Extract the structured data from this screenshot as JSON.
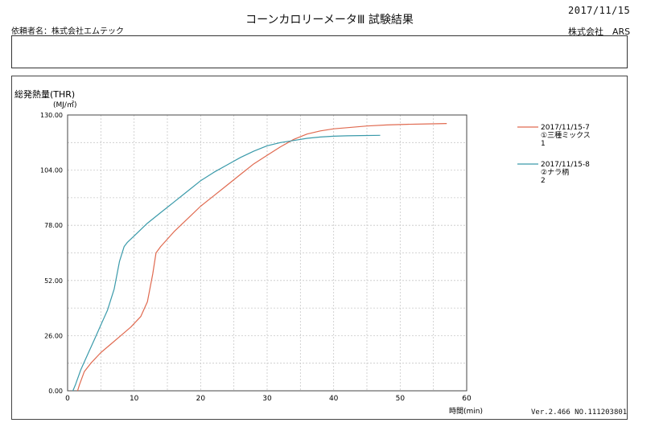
{
  "header": {
    "date": "2017/11/15",
    "title": "コーンカロリーメータⅢ 試験結果",
    "client_line": "依頼者名：株式会社エムテック",
    "company": "株式会社　ARS"
  },
  "footer": {
    "version": "Ver.2.466 NO.111203801"
  },
  "chart_data": {
    "type": "line",
    "title": "総発熱量(THR)",
    "ylabel": "(MJ/㎡)",
    "xlabel": "時間(min)",
    "xlim": [
      0,
      60
    ],
    "ylim": [
      0,
      130
    ],
    "x_ticks": [
      "0",
      "10",
      "20",
      "30",
      "40",
      "50",
      "60"
    ],
    "y_ticks": [
      "0.00",
      "26.00",
      "52.00",
      "78.00",
      "104.00",
      "130.00"
    ],
    "grid": true,
    "legend_position": "right",
    "series": [
      {
        "name": "2017/11/15-7",
        "name_line2": "①三種ミックス",
        "name_line3": "1",
        "color": "#e06a50",
        "x": [
          1.5,
          1.8,
          2.5,
          3.5,
          5,
          6.5,
          8,
          9.5,
          11,
          12,
          12.8,
          13.3,
          14,
          16,
          18,
          20,
          22,
          24,
          26,
          28,
          30,
          32,
          34,
          36,
          38,
          40,
          42,
          45,
          48,
          51,
          54,
          57
        ],
        "y": [
          0,
          3,
          9,
          13,
          18,
          22,
          26,
          30,
          35,
          42,
          55,
          65,
          68,
          75,
          81,
          87,
          92,
          97,
          102,
          107,
          111,
          115,
          118.5,
          121,
          122.5,
          123.5,
          124,
          124.8,
          125.3,
          125.6,
          125.8,
          126
        ]
      },
      {
        "name": "2017/11/15-8",
        "name_line2": "②ナラ柄",
        "name_line3": "2",
        "color": "#3a9aaa",
        "x": [
          0.8,
          1.2,
          2,
          3,
          4,
          5,
          6,
          7,
          7.8,
          8.5,
          9,
          10,
          12,
          14,
          16,
          18,
          20,
          22,
          24,
          26,
          28,
          30,
          32,
          34,
          36,
          38,
          40,
          42,
          44,
          47
        ],
        "y": [
          0,
          3,
          10,
          17,
          24,
          31,
          38,
          48,
          61,
          68,
          70,
          73,
          79,
          84,
          89,
          94,
          99,
          103,
          106.5,
          110,
          113,
          115.5,
          117,
          118,
          119,
          119.6,
          120,
          120.2,
          120.3,
          120.4
        ]
      }
    ]
  }
}
